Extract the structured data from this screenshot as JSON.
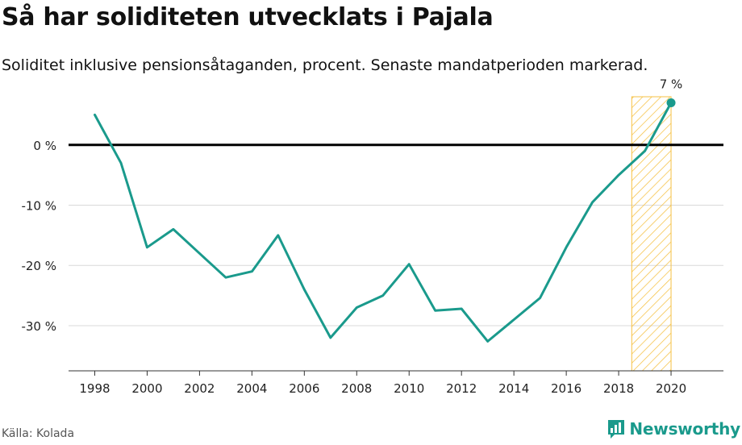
{
  "title": "Så har soliditeten utvecklats i Pajala",
  "subtitle": "Soliditet inklusive pensionsåtaganden, procent. Senaste mandatperioden markerad.",
  "source": "Källa: Kolada",
  "brand": "Newsworthy",
  "colors": {
    "line": "#1a9a8c",
    "highlight": "#f6c143",
    "zero": "#000000",
    "grid": "#d9d9d9",
    "brand": "#1a9a8c"
  },
  "chart_data": {
    "type": "line",
    "title": "Så har soliditeten utvecklats i Pajala",
    "subtitle": "Soliditet inklusive pensionsåtaganden, procent. Senaste mandatperioden markerad.",
    "x": [
      1998,
      1999,
      2000,
      2001,
      2002,
      2003,
      2004,
      2005,
      2006,
      2007,
      2008,
      2009,
      2010,
      2011,
      2012,
      2013,
      2014,
      2015,
      2016,
      2017,
      2018,
      2019,
      2020
    ],
    "series": [
      {
        "values": [
          5,
          -3,
          -17,
          -14,
          -18,
          -22,
          -21,
          -15,
          -24,
          -32,
          -27,
          -25,
          -19.8,
          -27.5,
          -27.2,
          -32.6,
          -29,
          -25.4,
          -17,
          -9.5,
          -5,
          -1,
          7
        ]
      }
    ],
    "xlim": [
      1997,
      2022
    ],
    "ylim": [
      -37.5,
      8
    ],
    "yticks": [
      0,
      -10,
      -20,
      -30
    ],
    "ytick_labels": [
      "0 %",
      "-10 %",
      "-20 %",
      "-30 %"
    ],
    "xticks": [
      1998,
      2000,
      2002,
      2004,
      2006,
      2008,
      2010,
      2012,
      2014,
      2016,
      2018,
      2020
    ],
    "xtick_labels": [
      "1998",
      "2000",
      "2002",
      "2004",
      "2006",
      "2008",
      "2010",
      "2012",
      "2014",
      "2016",
      "2018",
      "2020"
    ],
    "highlight_range": [
      2018.5,
      2020
    ],
    "last_point_label": "7 %",
    "grid": true,
    "xlabel": "",
    "ylabel": ""
  }
}
